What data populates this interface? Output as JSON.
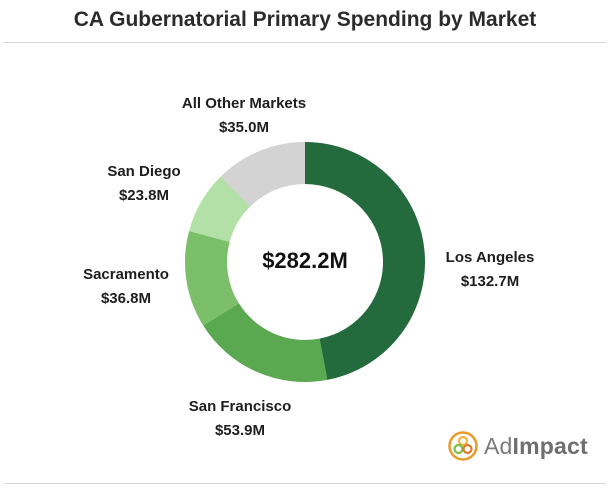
{
  "chart_data": {
    "type": "pie",
    "title": "CA Gubernatorial Primary Spending by Market",
    "center_label": "$282.2M",
    "slices": [
      {
        "label": "Los Angeles",
        "value_text": "$132.7M",
        "value": 132.7,
        "color": "#236a3c"
      },
      {
        "label": "San Francisco",
        "value_text": "$53.9M",
        "value": 53.9,
        "color": "#5aa84f"
      },
      {
        "label": "Sacramento",
        "value_text": "$36.8M",
        "value": 36.8,
        "color": "#7cbf6a"
      },
      {
        "label": "San Diego",
        "value_text": "$23.8M",
        "value": 23.8,
        "color": "#b3e0a6"
      },
      {
        "label": "All Other Markets",
        "value_text": "$35.0M",
        "value": 35.0,
        "color": "#d3d3d3"
      }
    ]
  },
  "logo": {
    "prefix": "Ad",
    "suffix": "Impact"
  }
}
